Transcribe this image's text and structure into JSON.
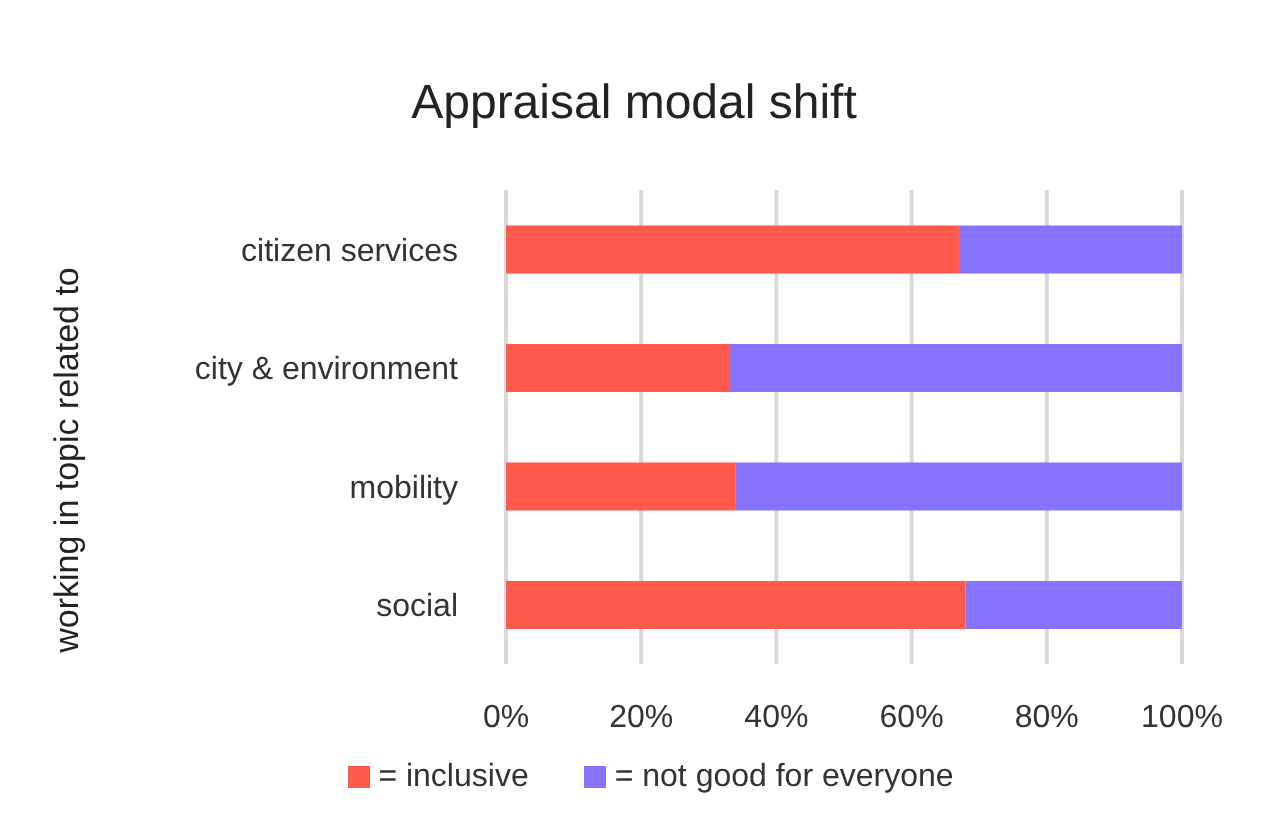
{
  "chart_data": {
    "type": "bar",
    "orientation": "horizontal",
    "stacked": true,
    "title": "Appraisal modal shift",
    "ylabel": "working in topic related to",
    "categories": [
      "citizen services",
      "city & environment",
      "mobility",
      "social"
    ],
    "series": [
      {
        "name": "= inclusive",
        "color": "#ff5a4c",
        "values": [
          67,
          33,
          34,
          68
        ]
      },
      {
        "name": "= not good for everyone",
        "color": "#8673ff",
        "values": [
          33,
          67,
          66,
          32
        ]
      }
    ],
    "xlim": [
      0,
      100
    ],
    "xticks": [
      {
        "value": 0,
        "label": "0%"
      },
      {
        "value": 20,
        "label": "20%"
      },
      {
        "value": 40,
        "label": "40%"
      },
      {
        "value": 60,
        "label": "60%"
      },
      {
        "value": 80,
        "label": "80%"
      },
      {
        "value": 100,
        "label": "100%"
      }
    ],
    "grid": "x",
    "legend": "bottom"
  }
}
